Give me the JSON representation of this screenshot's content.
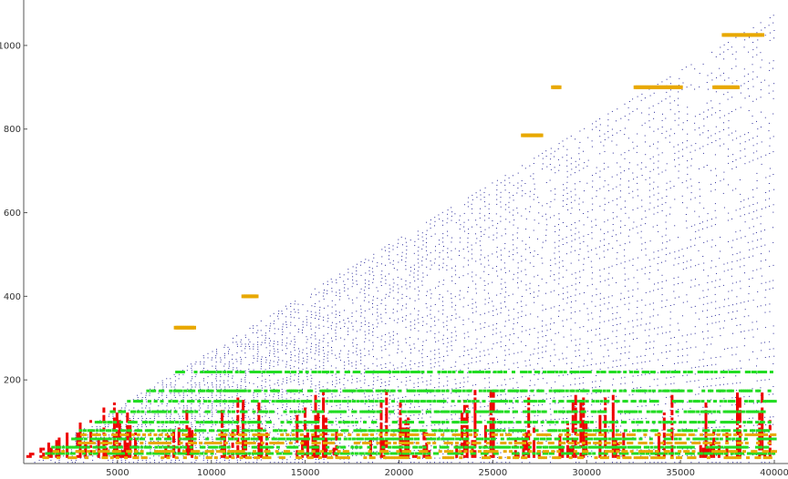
{
  "chart_data": {
    "type": "scatter",
    "title": "",
    "xlabel": "",
    "ylabel": "",
    "xlim": [
      0,
      40000
    ],
    "ylim": [
      0,
      1100
    ],
    "grid": false,
    "legend": "none",
    "x_ticks": [
      {
        "value": 5000,
        "label": "5000"
      },
      {
        "value": 10000,
        "label": "10000"
      },
      {
        "value": 15000,
        "label": "15000"
      },
      {
        "value": 20000,
        "label": "20000"
      },
      {
        "value": 25000,
        "label": "25000"
      },
      {
        "value": 30000,
        "label": "30000"
      },
      {
        "value": 35000,
        "label": "35000"
      },
      {
        "value": 40000,
        "label": "40000"
      }
    ],
    "y_ticks": [
      {
        "value": 200,
        "label": "200"
      },
      {
        "value": 400,
        "label": "400"
      },
      {
        "value": 600,
        "label": "600"
      },
      {
        "value": 800,
        "label": "800"
      },
      {
        "value": 1000,
        "label": "1000"
      }
    ],
    "colors": {
      "blue": "#2b2b9c",
      "red": "#ee0000",
      "green": "#22dd22",
      "orange": "#e8a800",
      "axis": "#555555"
    },
    "series": [
      {
        "color_key": "blue",
        "description_values": "fine dotted points filling the triangle y < ~0.027*x, dense horizontal banding",
        "boundary": {
          "x": [
            0,
            40000
          ],
          "y": [
            0,
            1090
          ]
        }
      },
      {
        "color_key": "red",
        "band": {
          "y": [
            20,
            180
          ]
        },
        "clusters_x": [
          [
            0,
            6000
          ],
          [
            7500,
            9500
          ],
          [
            10500,
            13000
          ],
          [
            14500,
            17000
          ],
          [
            18000,
            19500
          ],
          [
            20000,
            22000
          ],
          [
            23000,
            25000
          ],
          [
            26000,
            27500
          ],
          [
            28500,
            30000
          ],
          [
            30500,
            32000
          ],
          [
            33500,
            35000
          ],
          [
            36000,
            38500
          ],
          [
            39000,
            39800
          ]
        ]
      },
      {
        "color_key": "green",
        "rows_y": [
          25,
          40,
          60,
          80,
          100,
          125,
          150,
          175,
          220
        ],
        "x_range": [
          0,
          40000
        ]
      },
      {
        "color_key": "orange",
        "rows_y": [
          15,
          30,
          50,
          70
        ],
        "highlights": [
          {
            "x": [
              8000,
              9000
            ],
            "y": 325
          },
          {
            "x": [
              11600,
              12400
            ],
            "y": 400
          },
          {
            "x": [
              26500,
              27500
            ],
            "y": 785
          },
          {
            "x": [
              28100,
              28500
            ],
            "y": 900
          },
          {
            "x": [
              32500,
              35000
            ],
            "y": 900
          },
          {
            "x": [
              36700,
              38000
            ],
            "y": 900
          },
          {
            "x": [
              37200,
              39300
            ],
            "y": 1025
          }
        ]
      }
    ]
  }
}
